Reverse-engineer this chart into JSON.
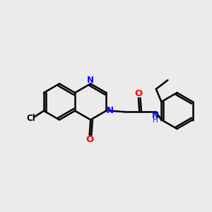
{
  "background_color": "#ebebeb",
  "bond_color": "#000000",
  "bond_width": 1.8,
  "atom_colors": {
    "N": "#0000ff",
    "O": "#ff0000",
    "Cl": "#000000",
    "NH": "#0000ff",
    "C": "#000000"
  },
  "font_size": 8.5,
  "fig_size": [
    3.0,
    3.0
  ],
  "dpi": 100,
  "xlim": [
    0,
    10
  ],
  "ylim": [
    0,
    10
  ]
}
